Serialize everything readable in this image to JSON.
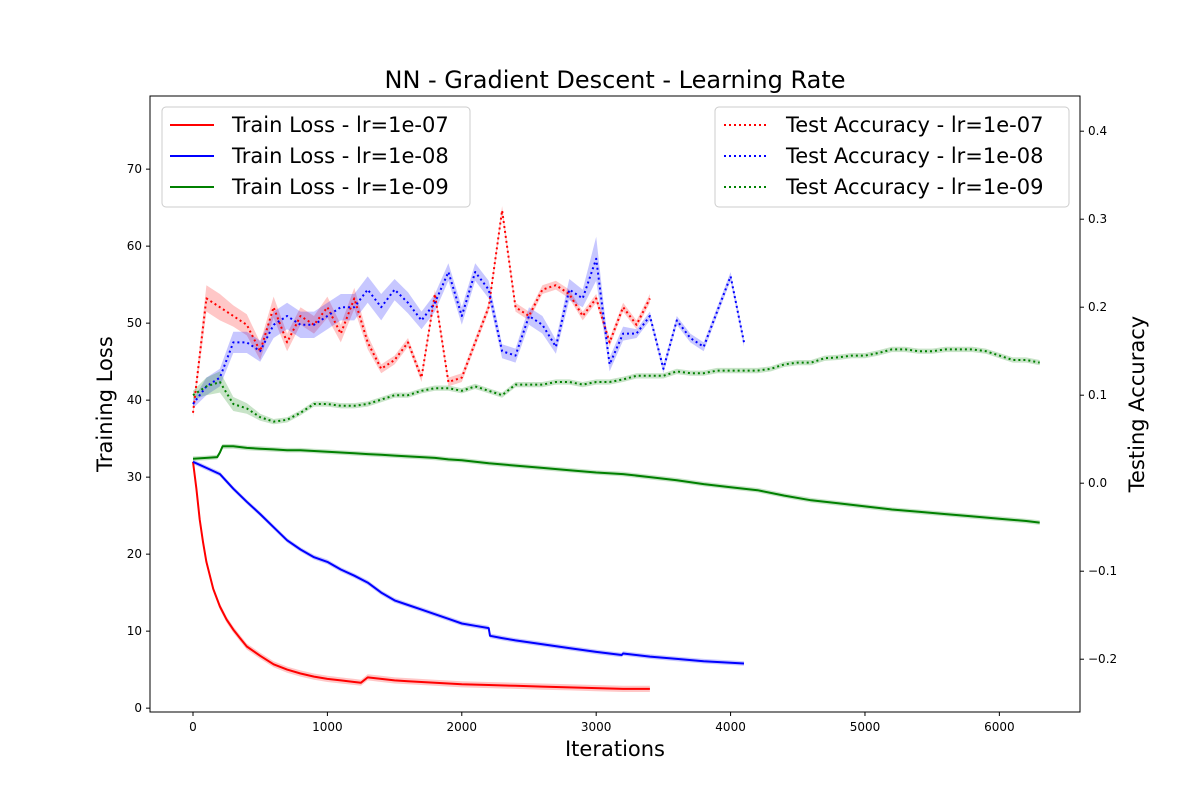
{
  "chart_data": {
    "type": "line",
    "title": "NN - Gradient Descent - Learning Rate",
    "xlabel": "Iterations",
    "ylabel": "Training Loss",
    "y2label": "Testing Accuracy",
    "xlim": [
      -320,
      6600
    ],
    "ylim": [
      -0.5,
      79.5
    ],
    "y2lim": [
      -0.26,
      0.44
    ],
    "x_ticks": [
      0,
      1000,
      2000,
      3000,
      4000,
      5000,
      6000
    ],
    "y_ticks": [
      0,
      10,
      20,
      30,
      40,
      50,
      60,
      70
    ],
    "y2_ticks": [
      -0.2,
      -0.1,
      0.0,
      0.1,
      0.2,
      0.3,
      0.4
    ],
    "y2_tick_labels": [
      "−0.2",
      "−0.1",
      "0.0",
      "0.1",
      "0.2",
      "0.3",
      "0.4"
    ],
    "grid": false,
    "legend_left_position": "upper-left",
    "legend_right_position": "upper-right",
    "train_series": [
      {
        "name": "Train Loss - lr=1e-07",
        "color": "#ff0000",
        "axis": "left",
        "style": "solid",
        "x": [
          0,
          25,
          50,
          75,
          100,
          150,
          200,
          250,
          300,
          350,
          400,
          500,
          600,
          700,
          800,
          900,
          1000,
          1100,
          1200,
          1250,
          1300,
          1400,
          1500,
          1600,
          1800,
          2000,
          2200,
          2400,
          2600,
          2800,
          3000,
          3200,
          3400
        ],
        "y": [
          32,
          28.5,
          24.5,
          21.5,
          19,
          15.5,
          13.2,
          11.5,
          10.2,
          9.1,
          8.0,
          6.8,
          5.7,
          5.0,
          4.5,
          4.1,
          3.8,
          3.6,
          3.4,
          3.3,
          4.0,
          3.8,
          3.6,
          3.5,
          3.3,
          3.1,
          3.0,
          2.9,
          2.8,
          2.7,
          2.6,
          2.5,
          2.5
        ],
        "band": 0.4
      },
      {
        "name": "Train Loss - lr=1e-08",
        "color": "#0000ff",
        "axis": "left",
        "style": "solid",
        "x": [
          0,
          100,
          200,
          300,
          400,
          500,
          600,
          700,
          800,
          900,
          1000,
          1100,
          1200,
          1300,
          1400,
          1500,
          1600,
          1700,
          1800,
          1900,
          2000,
          2100,
          2200,
          2210,
          2300,
          2400,
          2600,
          2800,
          3000,
          3190,
          3200,
          3400,
          3600,
          3800,
          4000,
          4100
        ],
        "y": [
          32,
          31.2,
          30.4,
          28.5,
          26.8,
          25.2,
          23.5,
          21.8,
          20.6,
          19.6,
          19.0,
          18.0,
          17.2,
          16.3,
          15.0,
          14.0,
          13.4,
          12.8,
          12.2,
          11.6,
          11.0,
          10.7,
          10.4,
          9.4,
          9.1,
          8.8,
          8.3,
          7.8,
          7.3,
          6.9,
          7.1,
          6.7,
          6.4,
          6.1,
          5.9,
          5.8
        ],
        "band": 0.3
      },
      {
        "name": "Train Loss - lr=1e-09",
        "color": "#008000",
        "axis": "left",
        "style": "solid",
        "x": [
          0,
          100,
          180,
          200,
          220,
          300,
          400,
          500,
          600,
          700,
          800,
          900,
          1000,
          1100,
          1200,
          1300,
          1400,
          1500,
          1600,
          1700,
          1800,
          1900,
          2000,
          2200,
          2400,
          2600,
          2800,
          3000,
          3200,
          3400,
          3600,
          3800,
          4000,
          4200,
          4400,
          4600,
          4800,
          5000,
          5200,
          5400,
          5600,
          5800,
          6000,
          6200,
          6300
        ],
        "y": [
          32.4,
          32.5,
          32.6,
          33.2,
          34.0,
          34.0,
          33.8,
          33.7,
          33.6,
          33.5,
          33.5,
          33.4,
          33.3,
          33.2,
          33.1,
          33.0,
          32.9,
          32.8,
          32.7,
          32.6,
          32.5,
          32.3,
          32.2,
          31.8,
          31.5,
          31.2,
          30.9,
          30.6,
          30.4,
          30.0,
          29.6,
          29.1,
          28.7,
          28.3,
          27.6,
          27.0,
          26.6,
          26.2,
          25.8,
          25.5,
          25.2,
          24.9,
          24.6,
          24.3,
          24.1
        ],
        "band": 0.3
      }
    ],
    "test_series": [
      {
        "name": "Test Accuracy - lr=1e-07",
        "color": "#ff0000",
        "axis": "right",
        "style": "dotted",
        "x": [
          0,
          100,
          200,
          300,
          400,
          500,
          600,
          700,
          800,
          900,
          1000,
          1100,
          1200,
          1300,
          1400,
          1500,
          1600,
          1700,
          1800,
          1900,
          2000,
          2100,
          2200,
          2300,
          2400,
          2500,
          2600,
          2700,
          2800,
          2900,
          3000,
          3100,
          3200,
          3300,
          3400
        ],
        "y": [
          0.08,
          0.21,
          0.2,
          0.19,
          0.18,
          0.15,
          0.2,
          0.16,
          0.19,
          0.18,
          0.2,
          0.17,
          0.21,
          0.16,
          0.13,
          0.14,
          0.16,
          0.12,
          0.215,
          0.115,
          0.12,
          0.16,
          0.2,
          0.31,
          0.2,
          0.19,
          0.22,
          0.225,
          0.215,
          0.19,
          0.21,
          0.16,
          0.2,
          0.18,
          0.21
        ],
        "band": [
          0.005,
          0.015,
          0.015,
          0.012,
          0.012,
          0.01,
          0.012,
          0.01,
          0.01,
          0.01,
          0.012,
          0.01,
          0.012,
          0.008,
          0.005,
          0.005,
          0.005,
          0.005,
          0.005,
          0.005,
          0.005,
          0.005,
          0.005,
          0.005,
          0.005,
          0.005,
          0.005,
          0.005,
          0.005,
          0.005,
          0.005,
          0.005,
          0.005,
          0.005,
          0.005
        ]
      },
      {
        "name": "Test Accuracy - lr=1e-08",
        "color": "#0000ff",
        "axis": "right",
        "style": "dotted",
        "x": [
          0,
          100,
          200,
          300,
          400,
          500,
          600,
          700,
          800,
          900,
          1000,
          1100,
          1200,
          1300,
          1400,
          1500,
          1600,
          1700,
          1800,
          1900,
          2000,
          2100,
          2200,
          2300,
          2400,
          2500,
          2600,
          2700,
          2800,
          2900,
          3000,
          3100,
          3200,
          3300,
          3400,
          3500,
          3600,
          3700,
          3800,
          3900,
          4000,
          4100
        ],
        "y": [
          0.09,
          0.11,
          0.12,
          0.16,
          0.16,
          0.15,
          0.18,
          0.19,
          0.18,
          0.18,
          0.19,
          0.2,
          0.2,
          0.22,
          0.2,
          0.22,
          0.205,
          0.185,
          0.205,
          0.24,
          0.19,
          0.24,
          0.22,
          0.15,
          0.145,
          0.19,
          0.18,
          0.155,
          0.22,
          0.21,
          0.255,
          0.135,
          0.17,
          0.17,
          0.19,
          0.13,
          0.185,
          0.165,
          0.155,
          0.195,
          0.235,
          0.16
        ],
        "band": [
          0.005,
          0.01,
          0.01,
          0.012,
          0.012,
          0.012,
          0.015,
          0.015,
          0.015,
          0.015,
          0.015,
          0.015,
          0.015,
          0.015,
          0.015,
          0.012,
          0.012,
          0.01,
          0.01,
          0.01,
          0.01,
          0.01,
          0.01,
          0.008,
          0.008,
          0.01,
          0.01,
          0.008,
          0.012,
          0.01,
          0.025,
          0.008,
          0.008,
          0.005,
          0.005,
          0.005,
          0.005,
          0.005,
          0.005,
          0.005,
          0.005,
          0.005
        ]
      },
      {
        "name": "Test Accuracy - lr=1e-09",
        "color": "#008000",
        "axis": "right",
        "style": "dotted",
        "x": [
          0,
          100,
          200,
          300,
          400,
          500,
          600,
          700,
          800,
          900,
          1000,
          1100,
          1200,
          1300,
          1400,
          1500,
          1600,
          1700,
          1800,
          1900,
          2000,
          2100,
          2200,
          2300,
          2400,
          2500,
          2600,
          2700,
          2800,
          2900,
          3000,
          3100,
          3200,
          3300,
          3400,
          3500,
          3600,
          3700,
          3800,
          3900,
          4000,
          4100,
          4200,
          4300,
          4400,
          4500,
          4600,
          4700,
          4800,
          4900,
          5000,
          5100,
          5200,
          5300,
          5400,
          5500,
          5600,
          5700,
          5800,
          5900,
          6000,
          6100,
          6200,
          6300
        ],
        "y": [
          0.1,
          0.11,
          0.115,
          0.09,
          0.085,
          0.075,
          0.07,
          0.072,
          0.08,
          0.09,
          0.09,
          0.088,
          0.088,
          0.09,
          0.095,
          0.1,
          0.1,
          0.105,
          0.108,
          0.108,
          0.105,
          0.11,
          0.105,
          0.1,
          0.112,
          0.112,
          0.112,
          0.115,
          0.115,
          0.112,
          0.115,
          0.115,
          0.118,
          0.122,
          0.122,
          0.122,
          0.127,
          0.125,
          0.125,
          0.128,
          0.128,
          0.128,
          0.128,
          0.13,
          0.135,
          0.137,
          0.137,
          0.142,
          0.143,
          0.145,
          0.145,
          0.148,
          0.152,
          0.152,
          0.15,
          0.15,
          0.152,
          0.152,
          0.152,
          0.15,
          0.145,
          0.14,
          0.14,
          0.137
        ],
        "band": [
          0.005,
          0.01,
          0.012,
          0.008,
          0.006,
          0.004,
          0.003,
          0.003,
          0.003,
          0.003,
          0.003,
          0.003,
          0.003,
          0.003,
          0.003,
          0.003,
          0.003,
          0.003,
          0.003,
          0.003,
          0.003,
          0.003,
          0.003,
          0.003,
          0.003,
          0.003,
          0.003,
          0.003,
          0.003,
          0.003,
          0.003,
          0.003,
          0.003,
          0.003,
          0.003,
          0.003,
          0.003,
          0.003,
          0.003,
          0.003,
          0.003,
          0.003,
          0.003,
          0.003,
          0.003,
          0.003,
          0.003,
          0.003,
          0.003,
          0.003,
          0.003,
          0.003,
          0.003,
          0.003,
          0.003,
          0.003,
          0.003,
          0.003,
          0.003,
          0.003,
          0.003,
          0.003,
          0.003,
          0.003
        ]
      }
    ]
  }
}
